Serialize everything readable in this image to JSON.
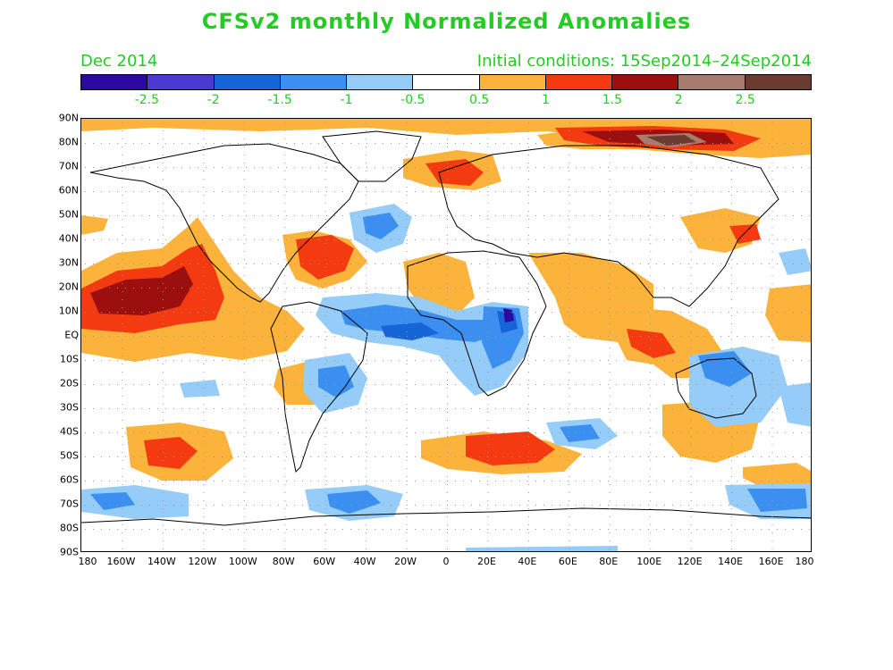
{
  "title": "CFSv2 monthly Normalized Anomalies",
  "valid_month": "Dec 2014",
  "initial_conditions": "Initial conditions: 15Sep2014–24Sep2014",
  "colorbar": {
    "colors": [
      "#2a0aa0",
      "#4a3ad2",
      "#1565d6",
      "#3b8ff0",
      "#96ccf8",
      "#ffffff",
      "#fbb33c",
      "#f43a10",
      "#9c0f0f",
      "#a67c6e",
      "#6b3a30"
    ],
    "labels": [
      "-2.5",
      "-2",
      "-1.5",
      "-1",
      "-0.5",
      "0.5",
      "1",
      "1.5",
      "2",
      "2.5"
    ]
  },
  "lat_axis": [
    "90N",
    "80N",
    "70N",
    "60N",
    "50N",
    "40N",
    "30N",
    "20N",
    "10N",
    "EQ",
    "10S",
    "20S",
    "30S",
    "40S",
    "50S",
    "60S",
    "70S",
    "80S",
    "90S"
  ],
  "lon_axis": [
    "180",
    "160W",
    "140W",
    "120W",
    "100W",
    "80W",
    "60W",
    "40W",
    "20W",
    "0",
    "20E",
    "40E",
    "60E",
    "80E",
    "100E",
    "120E",
    "140E",
    "160E",
    "180"
  ]
}
